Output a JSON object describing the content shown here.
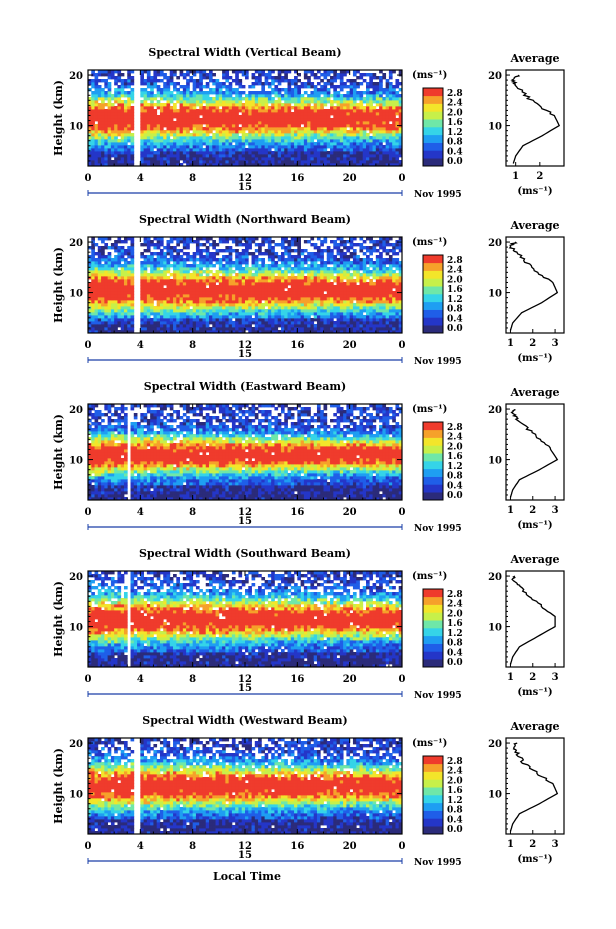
{
  "figure": {
    "x_axis_label": "Local Time",
    "y_axis_label": "Height (km)",
    "date_label": "Nov 1995",
    "day_label": "15",
    "colorbar_unit": "(ms⁻¹)",
    "colorbar_ticks": [
      "0.0",
      "0.4",
      "0.8",
      "1.2",
      "1.6",
      "2.0",
      "2.4",
      "2.8"
    ],
    "colorbar_colors": [
      "#2b2b7a",
      "#2436c8",
      "#1f5ee8",
      "#1e9ef2",
      "#35d4e8",
      "#6fe7a8",
      "#c7f04a",
      "#f3e52a",
      "#f6a12a",
      "#ef3b2c"
    ],
    "missing_data_color": "#ffffff",
    "average_title": "Average",
    "average_xlabel": "(ms⁻¹)"
  },
  "chart_data": [
    {
      "type": "heatmap",
      "title": "Spectral Width (Vertical Beam)",
      "xlabel": "",
      "ylabel": "Height (km)",
      "x_ticks": [
        "0",
        "4",
        "8",
        "12",
        "16",
        "20",
        "0"
      ],
      "y_ticks": [
        "10",
        "20"
      ],
      "xlim": [
        0,
        24
      ],
      "ylim": [
        2,
        21
      ],
      "value_range": [
        0,
        3.0
      ],
      "data_gap_hours": [
        3.6,
        3.9
      ],
      "high_width_layer_km": [
        7,
        16
      ],
      "average_profile": {
        "x_ticks": [
          "1",
          "2"
        ],
        "xlim": [
          0.6,
          3.0
        ],
        "ylim": [
          2,
          21
        ],
        "height_km": [
          2.5,
          4,
          6,
          8,
          10,
          12,
          14,
          16,
          18,
          19,
          20
        ],
        "width_ms": [
          0.9,
          1.0,
          1.3,
          2.1,
          2.8,
          2.6,
          1.9,
          1.4,
          1.0,
          0.9,
          1.1
        ]
      }
    },
    {
      "type": "heatmap",
      "title": "Spectral Width (Northward Beam)",
      "xlabel": "",
      "ylabel": "Height (km)",
      "x_ticks": [
        "0",
        "4",
        "8",
        "12",
        "16",
        "20",
        "0"
      ],
      "y_ticks": [
        "10",
        "20"
      ],
      "xlim": [
        0,
        24
      ],
      "ylim": [
        2,
        21
      ],
      "value_range": [
        0,
        3.0
      ],
      "data_gap_hours": [
        3.6,
        3.9
      ],
      "high_width_layer_km": [
        6,
        15
      ],
      "average_profile": {
        "x_ticks": [
          "1",
          "2",
          "3"
        ],
        "xlim": [
          0.8,
          3.4
        ],
        "ylim": [
          2,
          21
        ],
        "height_km": [
          2.5,
          4,
          6,
          8,
          10,
          12,
          14,
          16,
          18,
          19,
          20
        ],
        "width_ms": [
          1.0,
          1.1,
          1.5,
          2.4,
          3.1,
          2.9,
          2.2,
          1.7,
          1.3,
          1.0,
          1.2
        ]
      }
    },
    {
      "type": "heatmap",
      "title": "Spectral Width (Eastward Beam)",
      "xlabel": "",
      "ylabel": "Height (km)",
      "x_ticks": [
        "0",
        "4",
        "8",
        "12",
        "16",
        "20",
        "0"
      ],
      "y_ticks": [
        "10",
        "20"
      ],
      "xlim": [
        0,
        24
      ],
      "ylim": [
        2,
        21
      ],
      "value_range": [
        0,
        3.0
      ],
      "data_gap_hours": [
        3.0,
        3.3
      ],
      "high_width_layer_km": [
        7,
        15
      ],
      "average_profile": {
        "x_ticks": [
          "1",
          "2",
          "3"
        ],
        "xlim": [
          0.8,
          3.4
        ],
        "ylim": [
          2,
          21
        ],
        "height_km": [
          2.5,
          4,
          6,
          8,
          10,
          12,
          14,
          16,
          18,
          19,
          20
        ],
        "width_ms": [
          1.0,
          1.1,
          1.4,
          2.3,
          3.1,
          2.8,
          2.3,
          1.8,
          1.3,
          1.1,
          1.2
        ]
      }
    },
    {
      "type": "heatmap",
      "title": "Spectral Width (Southward Beam)",
      "xlabel": "",
      "ylabel": "Height (km)",
      "x_ticks": [
        "0",
        "4",
        "8",
        "12",
        "16",
        "20",
        "0"
      ],
      "y_ticks": [
        "10",
        "20"
      ],
      "xlim": [
        0,
        24
      ],
      "ylim": [
        2,
        21
      ],
      "value_range": [
        0,
        3.0
      ],
      "data_gap_hours": [
        3.0,
        3.3
      ],
      "high_width_layer_km": [
        7,
        16
      ],
      "average_profile": {
        "x_ticks": [
          "1",
          "2",
          "3"
        ],
        "xlim": [
          0.8,
          3.4
        ],
        "ylim": [
          2,
          21
        ],
        "height_km": [
          2.5,
          4,
          6,
          8,
          10,
          12,
          14,
          16,
          18,
          19,
          20
        ],
        "width_ms": [
          1.0,
          1.1,
          1.4,
          2.2,
          3.0,
          3.0,
          2.4,
          1.8,
          1.4,
          1.1,
          1.2
        ]
      }
    },
    {
      "type": "heatmap",
      "title": "Spectral Width (Westward Beam)",
      "xlabel": "Local Time",
      "ylabel": "Height (km)",
      "x_ticks": [
        "0",
        "4",
        "8",
        "12",
        "16",
        "20",
        "0"
      ],
      "y_ticks": [
        "10",
        "20"
      ],
      "xlim": [
        0,
        24
      ],
      "ylim": [
        2,
        21
      ],
      "value_range": [
        0,
        3.0
      ],
      "data_gap_hours": [
        3.6,
        3.9
      ],
      "high_width_layer_km": [
        7,
        16
      ],
      "average_profile": {
        "x_ticks": [
          "1",
          "2",
          "3"
        ],
        "xlim": [
          0.8,
          3.4
        ],
        "ylim": [
          2,
          21
        ],
        "height_km": [
          2.5,
          4,
          6,
          8,
          10,
          12,
          14,
          16,
          18,
          19,
          20
        ],
        "width_ms": [
          1.0,
          1.1,
          1.4,
          2.3,
          3.1,
          2.9,
          2.2,
          1.6,
          1.3,
          1.1,
          1.3
        ]
      }
    }
  ]
}
